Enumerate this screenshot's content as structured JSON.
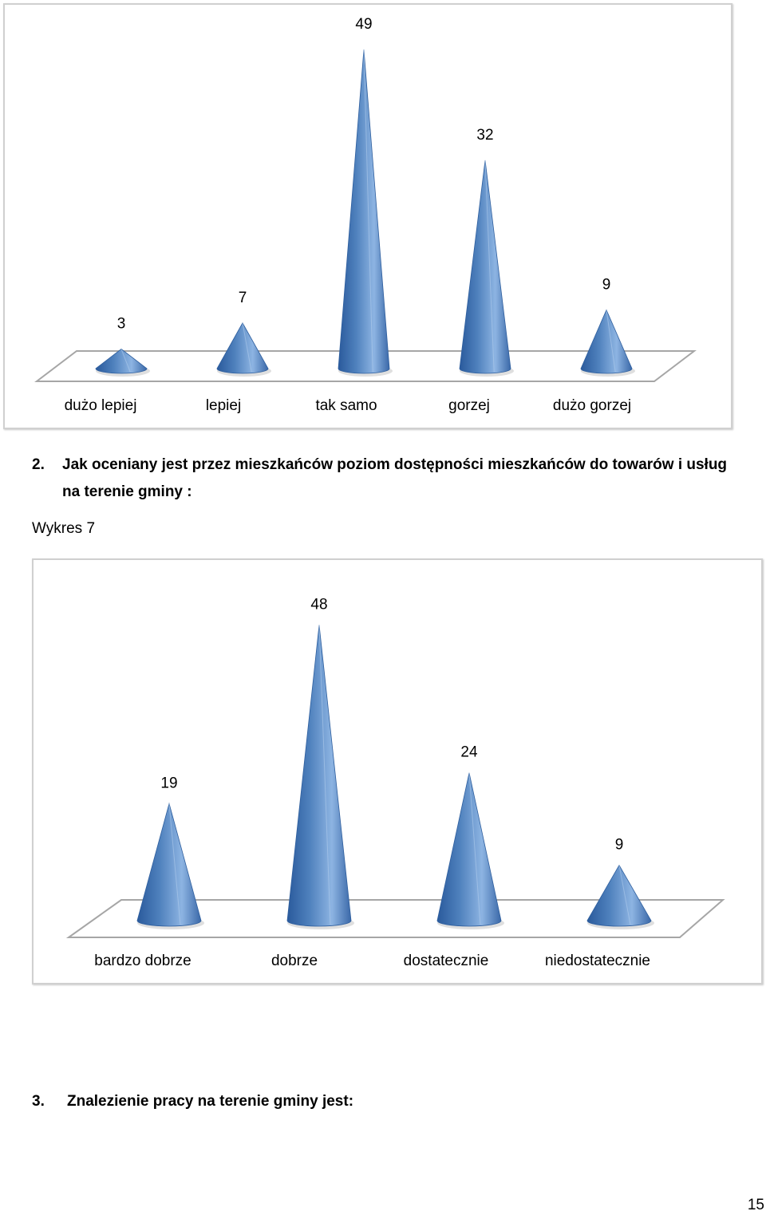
{
  "chart_data": [
    {
      "type": "bar",
      "style": "3d-cone",
      "categories": [
        "dużo lepiej",
        "lepiej",
        "tak samo",
        "gorzej",
        "dużo gorzej"
      ],
      "values": [
        3,
        7,
        49,
        32,
        9
      ],
      "ylim": [
        0,
        50
      ],
      "color": "#4f81bd",
      "grid": false,
      "legend": "none"
    },
    {
      "type": "bar",
      "style": "3d-cone",
      "categories": [
        "bardzo dobrze",
        "dobrze",
        "dostatecznie",
        "niedostatecznie"
      ],
      "values": [
        19,
        48,
        24,
        9
      ],
      "ylim": [
        0,
        50
      ],
      "color": "#4f81bd",
      "grid": false,
      "legend": "none"
    }
  ],
  "question2": {
    "number": "2.",
    "text_line1": "Jak oceniany jest przez mieszkańców poziom dostępności mieszkańców do towarów i usług",
    "text_line2": "na terenie gminy :"
  },
  "figure_label": "Wykres 7",
  "question3": {
    "number": "3.",
    "text": "Znalezienie pracy na terenie gminy jest:"
  },
  "page_number": "15"
}
